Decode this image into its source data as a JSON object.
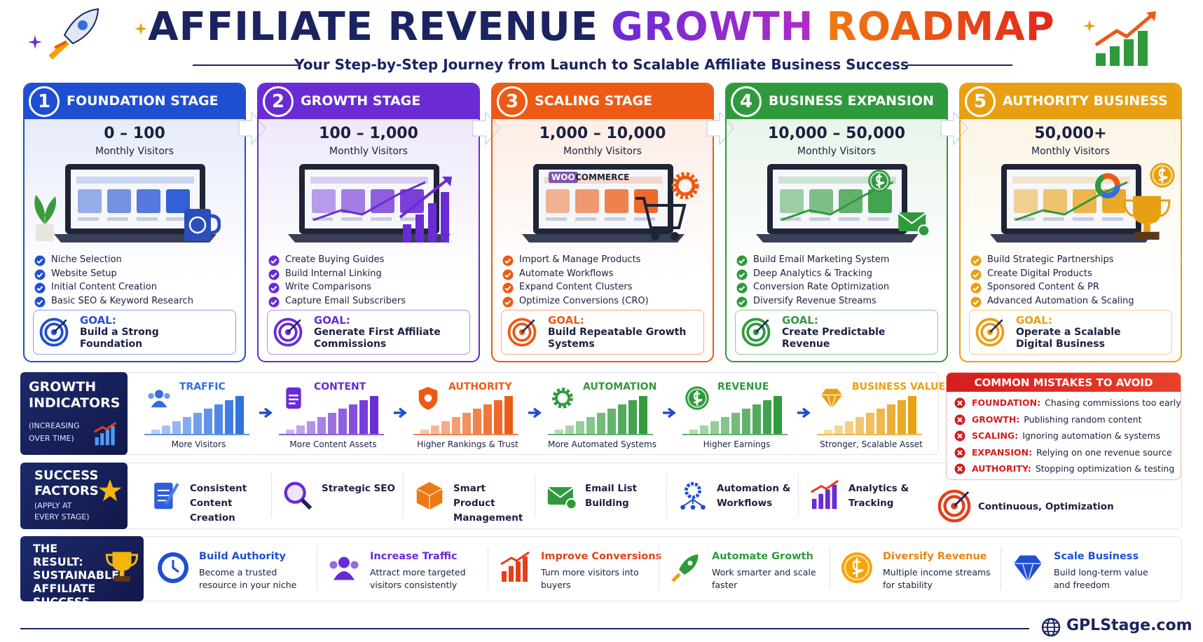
{
  "header": {
    "title": [
      "AFFILIATE REVENUE",
      "GROWTH",
      "ROADMAP"
    ],
    "subtitle": "Your Step-by-Step Journey from Launch to Scalable Affiliate Business Success"
  },
  "stages": [
    {
      "number": "1",
      "name": "FOUNDATION STAGE",
      "range": "0 – 100",
      "unit": "Monthly Visitors",
      "items": [
        "Niche Selection",
        "Website Setup",
        "Initial Content Creation",
        "Basic SEO & Keyword Research"
      ],
      "goal_label": "GOAL:",
      "goal": "Build a Strong Foundation",
      "color": "#1f4fd1"
    },
    {
      "number": "2",
      "name": "GROWTH STAGE",
      "range": "100 – 1,000",
      "unit": "Monthly Visitors",
      "items": [
        "Create Buying Guides",
        "Build Internal Linking",
        "Write Comparisons",
        "Capture Email Subscribers"
      ],
      "goal_label": "GOAL:",
      "goal": "Generate First Affiliate Commissions",
      "color": "#6a2bd4"
    },
    {
      "number": "3",
      "name": "SCALING STAGE",
      "range": "1,000 – 10,000",
      "unit": "Monthly Visitors",
      "items": [
        "Import & Manage Products",
        "Automate Workflows",
        "Expand Content Clusters",
        "Optimize Conversions (CRO)"
      ],
      "goal_label": "GOAL:",
      "goal": "Build Repeatable Growth Systems",
      "color": "#ec5a14",
      "illustration_text": [
        "WOO",
        "COMMERCE"
      ]
    },
    {
      "number": "4",
      "name": "BUSINESS EXPANSION",
      "range": "10,000 – 50,000",
      "unit": "Monthly Visitors",
      "items": [
        "Build Email Marketing System",
        "Deep Analytics & Tracking",
        "Conversion Rate Optimization",
        "Diversify Revenue Streams"
      ],
      "goal_label": "GOAL:",
      "goal": "Create Predictable Revenue",
      "color": "#2f9a3c"
    },
    {
      "number": "5",
      "name": "AUTHORITY BUSINESS",
      "range": "50,000+",
      "unit": "Monthly Visitors",
      "items": [
        "Build Strategic Partnerships",
        "Create Digital Products",
        "Sponsored Content & PR",
        "Advanced Automation & Scaling"
      ],
      "goal_label": "GOAL:",
      "goal": "Operate a Scalable Digital Business",
      "color": "#e8a012"
    }
  ],
  "indicators": {
    "title": "GROWTH INDICATORS",
    "subtitle": "(INCREASING OVER TIME)",
    "items": [
      {
        "name": "TRAFFIC",
        "caption": "More Visitors",
        "color": "#2f6fe0"
      },
      {
        "name": "CONTENT",
        "caption": "More Content Assets",
        "color": "#6a2bd4"
      },
      {
        "name": "AUTHORITY",
        "caption": "Higher Rankings & Trust",
        "color": "#ec5a14"
      },
      {
        "name": "AUTOMATION",
        "caption": "More Automated Systems",
        "color": "#2f9a3c"
      },
      {
        "name": "REVENUE",
        "caption": "Higher Earnings",
        "color": "#2f9a3c"
      },
      {
        "name": "BUSINESS VALUE",
        "caption": "Stronger, Scalable Asset",
        "color": "#e8a012"
      }
    ]
  },
  "mistakes": {
    "title": "COMMON MISTAKES TO AVOID",
    "items": [
      {
        "stage": "FOUNDATION:",
        "text": "Chasing commissions too early"
      },
      {
        "stage": "GROWTH:",
        "text": "Publishing random content"
      },
      {
        "stage": "SCALING:",
        "text": "Ignoring automation & systems"
      },
      {
        "stage": "EXPANSION:",
        "text": "Relying on one revenue source"
      },
      {
        "stage": "AUTHORITY:",
        "text": "Stopping optimization & testing"
      }
    ]
  },
  "success_factors": {
    "title": "SUCCESS FACTORS",
    "subtitle": "(APPLY AT EVERY STAGE)",
    "items": [
      "Consistent Content Creation",
      "Strategic SEO",
      "Smart Product Management",
      "Email List Building",
      "Automation & Workflows",
      "Analytics & Tracking",
      "Continuous, Optimization"
    ]
  },
  "result": {
    "title": "THE RESULT: SUSTAINABLE AFFILIATE SUCCESS",
    "items": [
      {
        "title": "Build Authority",
        "text": "Become a trusted resource in your niche",
        "color": "#1f4fd1"
      },
      {
        "title": "Increase Traffic",
        "text": "Attract more targeted visitors consistently",
        "color": "#6a2bd4"
      },
      {
        "title": "Improve Conversions",
        "text": "Turn more visitors into buyers",
        "color": "#e2401a"
      },
      {
        "title": "Automate Growth",
        "text": "Work smarter and scale faster",
        "color": "#2f9a3c"
      },
      {
        "title": "Diversify Revenue",
        "text": "Multiple income streams for stability",
        "color": "#e8850f"
      },
      {
        "title": "Scale Business",
        "text": "Build long-term value and freedom",
        "color": "#1f4fd1"
      }
    ]
  },
  "footer": {
    "brand": "GPLStage.com"
  }
}
